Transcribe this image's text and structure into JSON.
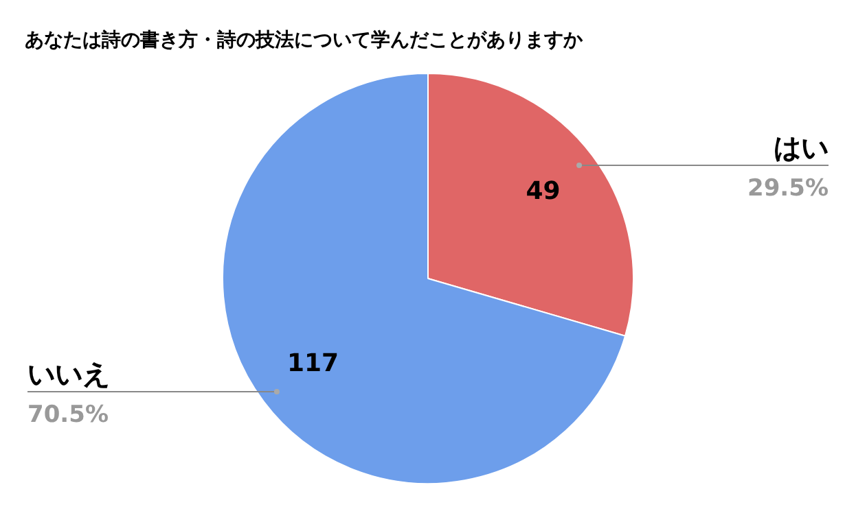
{
  "chart_data": {
    "type": "pie",
    "title": "あなたは詩の書き方・詩の技法について学んだことがありますか",
    "categories": [
      "はい",
      "いいえ"
    ],
    "values": [
      49,
      117
    ],
    "colors": [
      "#e06666",
      "#6d9eeb"
    ],
    "annotations": [
      {
        "text": "29.5%",
        "x": "はい"
      },
      {
        "text": "70.5%",
        "x": "いいえ"
      }
    ],
    "data_labels": true,
    "legend": false
  }
}
